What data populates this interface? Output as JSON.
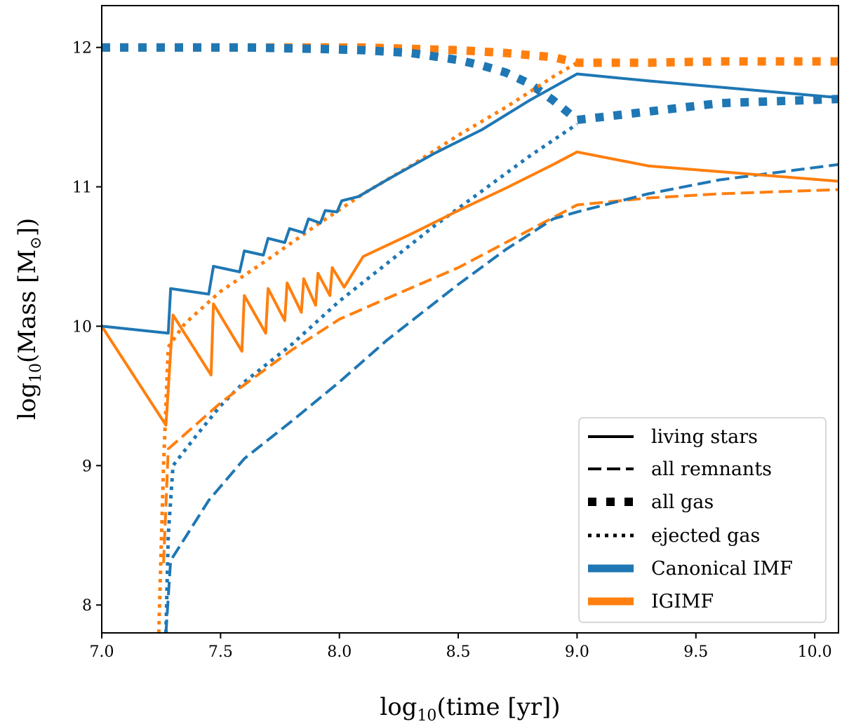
{
  "chart_data": {
    "type": "line",
    "title": "",
    "xlabel": "log₁₀(time [yr])",
    "ylabel": "log₁₀(Mass [M⊙])",
    "xlabel_parts": {
      "pre": "log",
      "sub": "10",
      "post": "(time [yr])"
    },
    "ylabel_parts": {
      "pre": "log",
      "sub": "10",
      "mid": "(Mass [M",
      "sub2": "⊙",
      "post": "])"
    },
    "xlim": [
      7.0,
      10.1
    ],
    "ylim": [
      7.8,
      12.3
    ],
    "xticks": [
      7.0,
      7.5,
      8.0,
      8.5,
      9.0,
      9.5,
      10.0
    ],
    "xtick_labels": [
      "7.0",
      "7.5",
      "8.0",
      "8.5",
      "9.0",
      "9.5",
      "10.0"
    ],
    "yticks": [
      8,
      9,
      10,
      11,
      12
    ],
    "ytick_labels": [
      "8",
      "9",
      "10",
      "11",
      "12"
    ],
    "grid": false,
    "legend_position": "lower-right",
    "colors": {
      "canonical": "#1f77b4",
      "igimf": "#ff7f0e"
    },
    "legend": [
      {
        "label": "living stars",
        "style": "solid",
        "color": "#000000"
      },
      {
        "label": "all remnants",
        "style": "dashed",
        "color": "#000000"
      },
      {
        "label": "all gas",
        "style": "thick-dashed",
        "color": "#000000"
      },
      {
        "label": "ejected gas",
        "style": "dotted",
        "color": "#000000"
      },
      {
        "label": "Canonical IMF",
        "style": "thick-solid",
        "color": "#1f77b4"
      },
      {
        "label": "IGIMF",
        "style": "thick-solid",
        "color": "#ff7f0e"
      }
    ],
    "series": [
      {
        "name": "IGIMF all gas",
        "imf": "IGIMF",
        "quantity": "all gas",
        "style": "thick-dashed",
        "color": "#ff7f0e",
        "x": [
          7.0,
          7.3,
          7.6,
          7.9,
          8.1,
          8.3,
          8.5,
          8.7,
          8.9,
          9.0,
          9.3,
          9.6,
          10.1
        ],
        "y": [
          12.0,
          12.0,
          12.0,
          12.0,
          12.0,
          11.99,
          11.98,
          11.96,
          11.93,
          11.89,
          11.89,
          11.9,
          11.9
        ]
      },
      {
        "name": "Canonical all gas",
        "imf": "Canonical IMF",
        "quantity": "all gas",
        "style": "thick-dashed",
        "color": "#1f77b4",
        "x": [
          7.0,
          7.3,
          7.6,
          7.9,
          8.1,
          8.3,
          8.5,
          8.6,
          8.7,
          8.8,
          8.9,
          9.0,
          9.3,
          9.6,
          10.1
        ],
        "y": [
          12.0,
          12.0,
          12.0,
          11.99,
          11.98,
          11.96,
          11.91,
          11.87,
          11.82,
          11.74,
          11.62,
          11.48,
          11.54,
          11.6,
          11.63
        ]
      },
      {
        "name": "IGIMF ejected gas",
        "imf": "IGIMF",
        "quantity": "ejected gas",
        "style": "dotted",
        "color": "#ff7f0e",
        "x": [
          7.24,
          7.26,
          7.28,
          7.35,
          7.5,
          7.7,
          7.9,
          8.1,
          8.3,
          8.5,
          8.7,
          8.9,
          9.0
        ],
        "y": [
          7.8,
          9.0,
          9.85,
          10.02,
          10.25,
          10.48,
          10.72,
          10.95,
          11.15,
          11.37,
          11.57,
          11.79,
          11.89
        ]
      },
      {
        "name": "Canonical ejected gas",
        "imf": "Canonical IMF",
        "quantity": "ejected gas",
        "style": "dotted",
        "color": "#1f77b4",
        "x": [
          7.27,
          7.28,
          7.3,
          7.4,
          7.5,
          7.6,
          7.8,
          8.0,
          8.2,
          8.4,
          8.6,
          8.8,
          9.0
        ],
        "y": [
          7.8,
          8.5,
          9.0,
          9.22,
          9.43,
          9.6,
          9.87,
          10.18,
          10.45,
          10.72,
          10.97,
          11.22,
          11.45
        ]
      },
      {
        "name": "IGIMF all remnants",
        "imf": "IGIMF",
        "quantity": "all remnants",
        "style": "dashed",
        "color": "#ff7f0e",
        "x": [
          7.26,
          7.28,
          7.4,
          7.5,
          7.6,
          7.8,
          8.0,
          8.2,
          8.5,
          8.7,
          8.9,
          9.0,
          9.3,
          9.6,
          10.1
        ],
        "y": [
          8.3,
          9.12,
          9.3,
          9.45,
          9.58,
          9.83,
          10.05,
          10.2,
          10.42,
          10.6,
          10.78,
          10.87,
          10.92,
          10.95,
          10.98
        ]
      },
      {
        "name": "Canonical all remnants",
        "imf": "Canonical IMF",
        "quantity": "all remnants",
        "style": "dashed",
        "color": "#1f77b4",
        "x": [
          7.27,
          7.29,
          7.35,
          7.45,
          7.6,
          7.8,
          8.0,
          8.2,
          8.5,
          8.7,
          8.9,
          9.0,
          9.3,
          9.6,
          10.1
        ],
        "y": [
          7.8,
          8.32,
          8.48,
          8.75,
          9.05,
          9.32,
          9.6,
          9.9,
          10.3,
          10.55,
          10.77,
          10.82,
          10.95,
          11.05,
          11.16
        ]
      },
      {
        "name": "IGIMF living stars",
        "imf": "IGIMF",
        "quantity": "living stars",
        "style": "solid",
        "color": "#ff7f0e",
        "x": [
          7.0,
          7.27,
          7.3,
          7.46,
          7.47,
          7.59,
          7.6,
          7.69,
          7.7,
          7.77,
          7.78,
          7.84,
          7.85,
          7.9,
          7.91,
          7.96,
          7.97,
          8.02,
          8.1,
          8.2,
          8.3,
          8.5,
          8.7,
          8.9,
          9.0,
          9.3,
          10.1
        ],
        "y": [
          10.0,
          9.29,
          10.08,
          9.65,
          10.16,
          9.82,
          10.22,
          9.95,
          10.27,
          10.04,
          10.31,
          10.1,
          10.34,
          10.15,
          10.38,
          10.22,
          10.42,
          10.28,
          10.5,
          10.58,
          10.66,
          10.83,
          10.99,
          11.16,
          11.25,
          11.15,
          11.04
        ]
      },
      {
        "name": "Canonical living stars",
        "imf": "Canonical IMF",
        "quantity": "living stars",
        "style": "solid",
        "color": "#1f77b4",
        "x": [
          7.0,
          7.28,
          7.29,
          7.45,
          7.47,
          7.58,
          7.6,
          7.68,
          7.7,
          7.77,
          7.79,
          7.85,
          7.87,
          7.92,
          7.94,
          7.99,
          8.01,
          8.08,
          8.2,
          8.4,
          8.6,
          8.8,
          9.0,
          9.3,
          10.1
        ],
        "y": [
          10.0,
          9.95,
          10.27,
          10.23,
          10.43,
          10.39,
          10.54,
          10.51,
          10.63,
          10.6,
          10.7,
          10.67,
          10.77,
          10.74,
          10.83,
          10.82,
          10.9,
          10.93,
          11.05,
          11.24,
          11.41,
          11.62,
          11.81,
          11.76,
          11.64
        ]
      }
    ]
  }
}
